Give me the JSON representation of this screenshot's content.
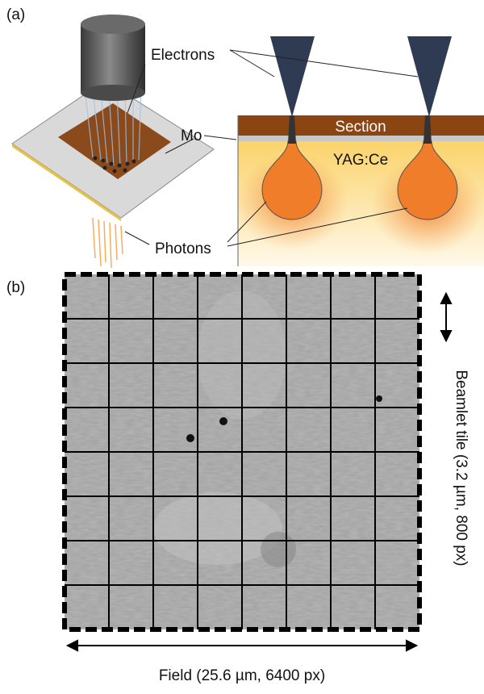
{
  "panel_a": {
    "label": "(a)",
    "electrons": "Electrons",
    "mo": "Mo",
    "photons": "Photons",
    "section": "Section",
    "yag": "YAG:Ce"
  },
  "panel_b": {
    "label": "(b)",
    "tile_label": "Beamlet tile (3.2 µm, 800 px)",
    "field_label": "Field (25.6 µm, 6400 px)"
  }
}
